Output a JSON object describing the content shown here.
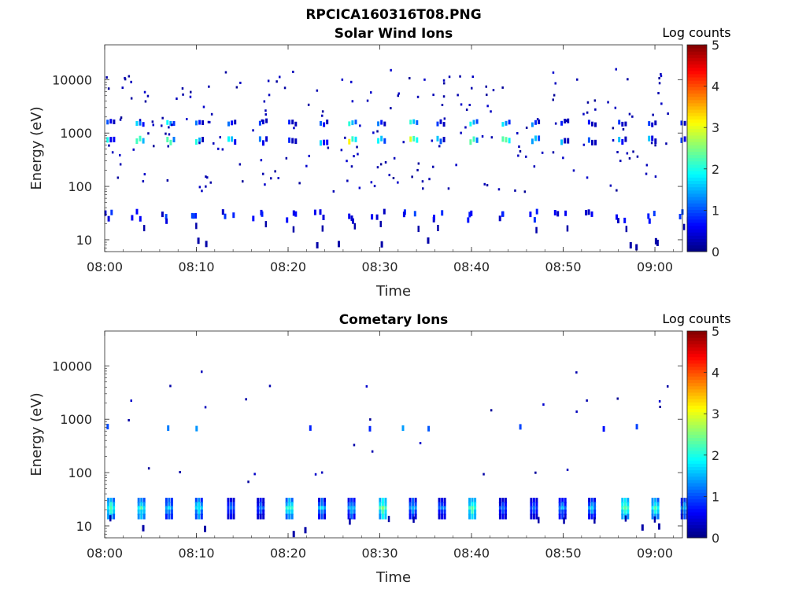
{
  "figure": {
    "title": "RPCICA160316T08.PNG"
  },
  "colors": {
    "axis": "#262626",
    "background": "#ffffff",
    "colormap": "jet"
  },
  "chart_data": [
    {
      "type": "heatmap",
      "title": "Solar Wind Ions",
      "xlabel": "Time",
      "ylabel": "Energy (eV)",
      "y_scale": "log",
      "ylim": [
        6,
        45000
      ],
      "xlim": [
        "08:00",
        "09:03"
      ],
      "x_ticks": [
        "08:00",
        "08:10",
        "08:20",
        "08:30",
        "08:40",
        "08:50",
        "09:00"
      ],
      "y_ticks": [
        "10",
        "100",
        "1000",
        "10000"
      ],
      "colorbar": {
        "label": "Log counts",
        "range": [
          0,
          5
        ],
        "ticks": [
          "0",
          "1",
          "2",
          "3",
          "4",
          "5"
        ]
      },
      "grid": false,
      "legend": "none",
      "description_of_values": "Sparse log count patches; strong bands near 700 eV and 1500 eV recurring every ~3 minutes (log counts ~1-3), scattered single counts 20-40 eV and 100-10000 eV",
      "bands": [
        {
          "energy_eV": 700,
          "log_counts_peak": 3
        },
        {
          "energy_eV": 1500,
          "log_counts_peak": 2
        },
        {
          "energy_eV": 27,
          "log_counts_peak": 1
        }
      ]
    },
    {
      "type": "heatmap",
      "title": "Cometary Ions",
      "xlabel": "Time",
      "ylabel": "Energy (eV)",
      "y_scale": "log",
      "ylim": [
        6,
        45000
      ],
      "xlim": [
        "08:00",
        "09:03"
      ],
      "x_ticks": [
        "08:00",
        "08:10",
        "08:20",
        "08:30",
        "08:40",
        "08:50",
        "09:00"
      ],
      "y_ticks": [
        "10",
        "100",
        "1000",
        "10000"
      ],
      "colorbar": {
        "label": "Log counts",
        "range": [
          0,
          5
        ],
        "ticks": [
          "0",
          "1",
          "2",
          "3",
          "4",
          "5"
        ]
      },
      "grid": false,
      "legend": "none",
      "description_of_values": "Periodic bursts every ~3 minutes at 15-35 eV (log counts ~1-2.5), sparse detections near 700 eV",
      "bands": [
        {
          "energy_eV": 25,
          "log_counts_peak": 2.5
        },
        {
          "energy_eV": 700,
          "log_counts_peak": 1.5
        }
      ]
    }
  ]
}
